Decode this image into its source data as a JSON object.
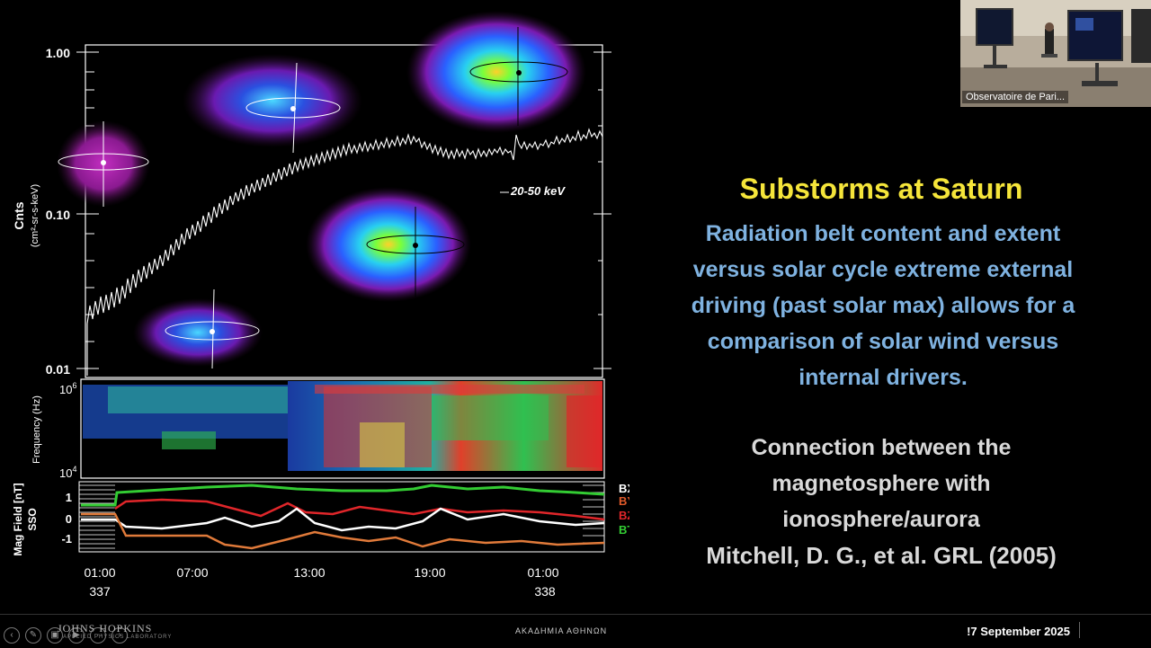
{
  "slide": {
    "title": "Substorms at Saturn",
    "body_lines": [
      "Radiation belt content and extent",
      "versus solar cycle extreme external",
      "driving (past solar max) allows for a",
      "comparison of solar wind versus",
      "internal drivers."
    ],
    "connection_lines": [
      "Connection between the",
      "magnetosphere with",
      "ionosphere/aurora"
    ],
    "citation": "Mitchell, D. G., et al. GRL (2005)"
  },
  "figure": {
    "top_panel": {
      "ylabel_main": "Cnts",
      "ylabel_unit": "(cm²-sr-s-keV)",
      "yticks": [
        "1.00",
        "0.10",
        "0.01"
      ],
      "energy_label": "20-50 keV"
    },
    "middle_panel": {
      "ylabel": "Frequency (Hz)",
      "ytick_top": "10",
      "ytick_top_exp": "6",
      "ytick_bottom": "10",
      "ytick_bottom_exp": "4"
    },
    "bottom_panel": {
      "ylabel_line1": "Mag Field [nT]",
      "ylabel_line2": "SSO",
      "yticks": [
        "1",
        "0",
        "-1"
      ],
      "legend": [
        {
          "name": "BX",
          "color": "#ffffff"
        },
        {
          "name": "BY",
          "color": "#e05a2a"
        },
        {
          "name": "BZ",
          "color": "#e0262a"
        },
        {
          "name": "BTOT",
          "color": "#33cc33"
        }
      ]
    },
    "xticks": [
      "01:00",
      "07:00",
      "13:00",
      "19:00",
      "01:00"
    ],
    "day_labels": [
      "337",
      "338"
    ]
  },
  "webcam": {
    "label": "Observatoire de Pari..."
  },
  "footer": {
    "org_left": "JOHNS HOPKINS",
    "org_left_sub": "APPLIED PHYSICS LABORATORY",
    "org_center": "ΑΚΑΔΗΜΙΑ ΑΘΗΝΩΝ",
    "date": "!7 September 2025"
  },
  "colors": {
    "title": "#f5e53a",
    "body": "#7fb2e0",
    "connection": "#d9d9d9"
  },
  "icons": [
    "back-icon",
    "pen-icon",
    "image-icon",
    "video-icon",
    "more-icon",
    "forward-icon"
  ]
}
